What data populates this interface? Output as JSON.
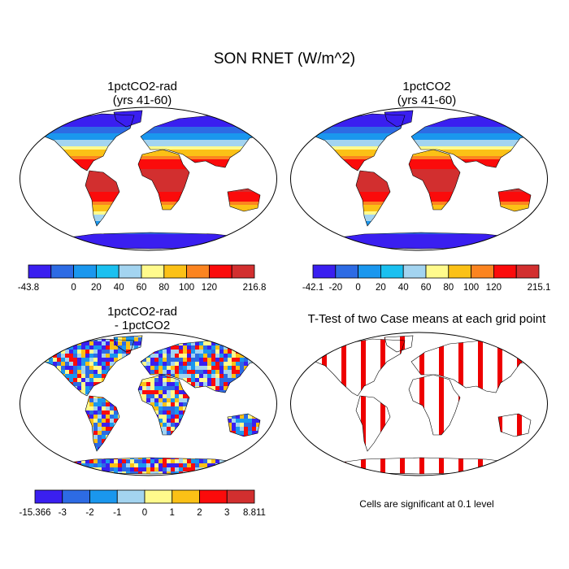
{
  "title": "SON RNET (W/m^2)",
  "panels": [
    {
      "title_line1": "1pctCO2-rad",
      "title_line2": "(yrs 41-60)"
    },
    {
      "title_line1": "1pctCO2",
      "title_line2": "(yrs 41-60)"
    },
    {
      "title_line1": "1pctCO2-rad",
      "title_line2": "- 1pctCO2"
    },
    {
      "title_line1": "T-Test of two Case means at each grid point",
      "title_line2": ""
    }
  ],
  "colorbars": [
    {
      "colors": [
        "#3a1ff0",
        "#2d6be4",
        "#1a97ee",
        "#1ac0f0",
        "#a3d4f0",
        "#fffa8c",
        "#fbc116",
        "#fb8420",
        "#fb0b0b",
        "#d22f2f"
      ],
      "tick_labels": [
        "-43.8",
        "0",
        "20",
        "40",
        "60",
        "80",
        "100",
        "120",
        "216.8"
      ],
      "tick_boundaries": [
        0,
        2,
        3,
        4,
        5,
        6,
        7,
        8,
        10
      ]
    },
    {
      "colors": [
        "#3a1ff0",
        "#2d6be4",
        "#1a97ee",
        "#1ac0f0",
        "#a3d4f0",
        "#fffa8c",
        "#fbc116",
        "#fb8420",
        "#fb0b0b",
        "#d22f2f"
      ],
      "tick_labels": [
        "-42.1",
        "-20",
        "0",
        "20",
        "40",
        "60",
        "80",
        "100",
        "120",
        "215.1"
      ],
      "tick_boundaries": [
        0,
        1,
        2,
        3,
        4,
        5,
        6,
        7,
        8,
        10
      ]
    },
    {
      "colors": [
        "#3a1ff0",
        "#2d6be4",
        "#1a97ee",
        "#a3d4f0",
        "#fffa8c",
        "#fbc116",
        "#fb0b0b",
        "#d22f2f"
      ],
      "tick_labels": [
        "-15.366",
        "-3",
        "-2",
        "-1",
        "0",
        "1",
        "2",
        "3",
        "8.811"
      ],
      "tick_boundaries": [
        0,
        1,
        2,
        3,
        4,
        5,
        6,
        7,
        8
      ]
    }
  ],
  "note": "Cells are significant at 0.1 level",
  "colors": {
    "ocean": "#ffffff",
    "outline": "#000000",
    "significant": "#ee0000"
  }
}
